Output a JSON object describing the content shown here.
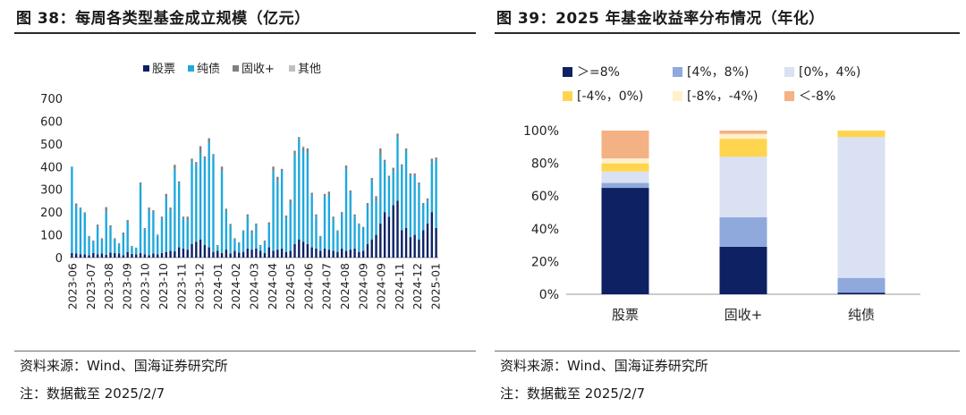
{
  "left": {
    "title": "图 38：每周各类型基金成立规模（亿元）",
    "source": "资料来源：Wind、国海证券研究所",
    "note": "注：数据截至 2025/2/7"
  },
  "right": {
    "title": "图 39：2025 年基金收益率分布情况（年化）",
    "source": "资料来源：Wind、国海证券研究所",
    "note": "注：数据截至 2025/2/7"
  },
  "chart_data": [
    {
      "type": "bar",
      "stacked": true,
      "title": "每周各类型基金成立规模（亿元）",
      "ylim": [
        0,
        700
      ],
      "yticks": [
        0,
        100,
        200,
        300,
        400,
        500,
        600,
        700
      ],
      "x_tick_labels": [
        "2023-06",
        "2023-07",
        "2023-08",
        "2023-09",
        "2023-10",
        "2023-10",
        "2023-11",
        "2023-12",
        "2024-01",
        "2024-02",
        "2024-03",
        "2024-04",
        "2024-05",
        "2024-06",
        "2024-07",
        "2024-08",
        "2024-09",
        "2024-09",
        "2024-11",
        "2024-12",
        "2025-01"
      ],
      "legend": "top",
      "series": [
        {
          "name": "股票",
          "color": "#0d2163",
          "values": [
            20,
            18,
            15,
            14,
            10,
            20,
            15,
            18,
            12,
            22,
            20,
            18,
            10,
            25,
            16,
            14,
            20,
            15,
            10,
            18,
            14,
            20,
            25,
            30,
            28,
            45,
            40,
            35,
            60,
            70,
            80,
            55,
            45,
            25,
            30,
            20,
            35,
            18,
            30,
            22,
            25,
            40,
            35,
            40,
            30,
            20,
            45,
            30,
            35,
            40,
            25,
            30,
            60,
            80,
            70,
            60,
            45,
            40,
            30,
            40,
            35,
            30,
            25,
            40,
            30,
            35,
            40,
            25,
            30,
            60,
            80,
            100,
            150,
            200,
            180,
            230,
            250,
            120,
            130,
            90,
            100,
            80,
            120,
            150,
            200,
            130
          ]
        },
        {
          "name": "纯债",
          "color": "#1fa8dd",
          "values": [
            380,
            210,
            200,
            180,
            80,
            50,
            120,
            60,
            190,
            110,
            60,
            40,
            90,
            130,
            30,
            30,
            300,
            110,
            200,
            180,
            80,
            150,
            240,
            180,
            360,
            280,
            130,
            130,
            360,
            340,
            380,
            380,
            460,
            420,
            20,
            360,
            170,
            120,
            50,
            40,
            90,
            140,
            70,
            100,
            20,
            50,
            100,
            350,
            300,
            340,
            150,
            210,
            390,
            440,
            400,
            400,
            230,
            140,
            60,
            230,
            240,
            140,
            90,
            150,
            360,
            250,
            140,
            120,
            100,
            170,
            260,
            150,
            300,
            220,
            170,
            150,
            280,
            280,
            340,
            270,
            260,
            240,
            110,
            100,
            220,
            300
          ]
        },
        {
          "name": "固收+",
          "color": "#7f7f7f",
          "values": [
            0,
            10,
            5,
            5,
            5,
            5,
            10,
            5,
            20,
            10,
            5,
            5,
            10,
            10,
            5,
            0,
            10,
            5,
            10,
            10,
            5,
            10,
            15,
            10,
            20,
            10,
            10,
            15,
            15,
            10,
            30,
            10,
            20,
            10,
            5,
            20,
            10,
            10,
            5,
            5,
            5,
            10,
            15,
            10,
            5,
            5,
            10,
            20,
            20,
            10,
            10,
            15,
            20,
            10,
            15,
            20,
            10,
            10,
            5,
            10,
            15,
            10,
            5,
            10,
            15,
            10,
            10,
            5,
            5,
            10,
            10,
            20,
            30,
            10,
            10,
            15,
            15,
            10,
            10,
            10,
            10,
            10,
            10,
            10,
            15,
            10
          ]
        },
        {
          "name": "其他",
          "color": "#bfbfbf",
          "values": [
            0,
            0,
            0,
            0,
            0,
            0,
            0,
            5,
            0,
            0,
            0,
            0,
            0,
            0,
            0,
            0,
            0,
            0,
            0,
            0,
            5,
            0,
            0,
            0,
            0,
            0,
            0,
            0,
            0,
            0,
            0,
            0,
            0,
            0,
            0,
            0,
            0,
            0,
            0,
            0,
            0,
            0,
            0,
            0,
            0,
            0,
            0,
            0,
            0,
            0,
            0,
            0,
            0,
            0,
            5,
            0,
            0,
            0,
            0,
            0,
            0,
            0,
            0,
            0,
            0,
            0,
            0,
            0,
            0,
            0,
            0,
            0,
            0,
            0,
            0,
            0,
            0,
            0,
            0,
            0,
            0,
            0,
            0,
            0,
            0,
            0
          ]
        }
      ]
    },
    {
      "type": "bar",
      "stacked": true,
      "percent": true,
      "title": "2025 年基金收益率分布情况（年化）",
      "categories": [
        "股票",
        "固收+",
        "纯债"
      ],
      "ylim": [
        0,
        100
      ],
      "yticks": [
        "0%",
        "20%",
        "40%",
        "60%",
        "80%",
        "100%"
      ],
      "legend": "top",
      "series": [
        {
          "name": "＞=8%",
          "color": "#0d2163",
          "values": [
            65,
            29,
            1
          ]
        },
        {
          "name": "[4%，8%)",
          "color": "#8fa9dc",
          "values": [
            3,
            18,
            9
          ]
        },
        {
          "name": "[0%，4%)",
          "color": "#d9e1f2",
          "values": [
            7,
            37,
            86
          ]
        },
        {
          "name": "[-4%，0%)",
          "color": "#ffd54f",
          "values": [
            5,
            11,
            4
          ]
        },
        {
          "name": "[-8%，-4%)",
          "color": "#fff1cc",
          "values": [
            3,
            3,
            0
          ]
        },
        {
          "name": "＜-8%",
          "color": "#f4b183",
          "values": [
            17,
            2,
            0
          ]
        }
      ]
    }
  ]
}
